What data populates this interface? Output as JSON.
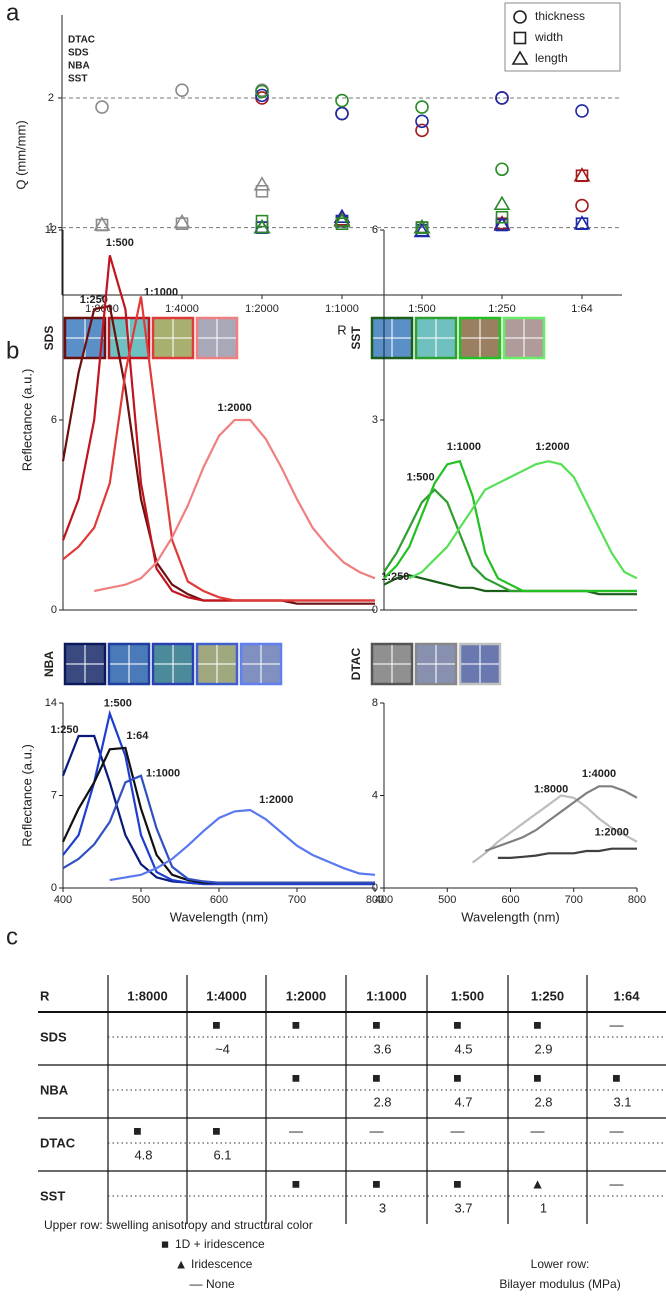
{
  "panel_labels": [
    "a",
    "b",
    "c"
  ],
  "chart_data": [
    {
      "type": "scatter",
      "ylabel": "Q (mm/mm)",
      "xlabel": "R",
      "categories": [
        "1:8000",
        "1:4000",
        "1:2000",
        "1:1000",
        "1:500",
        "1:250",
        "1:64"
      ],
      "markers": [
        "thickness",
        "width",
        "length"
      ],
      "ylim": [
        0.48,
        2.64
      ],
      "yticks": [
        1,
        2
      ],
      "grid": true,
      "series": [
        {
          "name": "DTAC",
          "color": "#8c8c8c",
          "values": [
            [
              1.93,
              1.02,
              1.02
            ],
            [
              2.06,
              1.03,
              1.04
            ],
            [
              2.06,
              1.28,
              1.33
            ],
            null,
            null,
            null,
            null
          ]
        },
        {
          "name": "SDS",
          "color": "#a31c1c",
          "values": [
            null,
            null,
            [
              2.0,
              1.0,
              1.0
            ],
            [
              1.88,
              1.05,
              1.06
            ],
            [
              1.75,
              1.0,
              1.0
            ],
            [
              2.0,
              1.03,
              1.03
            ],
            [
              1.17,
              1.4,
              1.4
            ]
          ]
        },
        {
          "name": "NBA",
          "color": "#1f2aa8",
          "values": [
            null,
            null,
            [
              2.02,
              1.0,
              1.0
            ],
            [
              1.88,
              1.05,
              1.08
            ],
            [
              1.82,
              0.98,
              0.97
            ],
            [
              2.0,
              1.02,
              1.02
            ],
            [
              1.9,
              1.03,
              1.03
            ]
          ]
        },
        {
          "name": "SST",
          "color": "#2a8a2a",
          "values": [
            null,
            null,
            [
              2.05,
              1.05,
              1.0
            ],
            [
              1.98,
              1.03,
              1.05
            ],
            [
              1.93,
              1.0,
              1.0
            ],
            [
              1.45,
              1.08,
              1.18
            ],
            null
          ]
        }
      ]
    },
    {
      "type": "line",
      "label": "SDS",
      "label_color": "#c0141e",
      "ylabel": "Reflectance (a.u.)",
      "swatches": [
        {
          "border": "#6b0f0f",
          "fill": "#5a8fc8"
        },
        {
          "border": "#c0141e",
          "fill": "#6fc0c0"
        },
        {
          "border": "#e03a3a",
          "fill": "#a8b070"
        },
        {
          "border": "#f08080",
          "fill": "#a8a8b8"
        }
      ],
      "x": [
        400,
        420,
        440,
        460,
        480,
        500,
        520,
        540,
        560,
        580,
        600,
        620,
        640,
        660,
        680,
        700,
        720,
        740,
        760,
        780,
        800
      ],
      "xlim": [
        400,
        800
      ],
      "ylim": [
        0,
        12
      ],
      "yticks": [
        0,
        6,
        12
      ],
      "series": [
        {
          "name": "1:250",
          "color": "#6b0f0f",
          "values": [
            4.7,
            7.5,
            9.5,
            9.6,
            7,
            3.5,
            1.5,
            0.8,
            0.5,
            0.3,
            0.3,
            0.3,
            0.3,
            0.3,
            0.3,
            0.2,
            0.2,
            0.2,
            0.2,
            0.2,
            0.2
          ]
        },
        {
          "name": "1:500",
          "color": "#c0141e",
          "values": [
            2.2,
            3.5,
            6,
            11.2,
            9.5,
            4,
            1.3,
            0.6,
            0.4,
            0.3,
            0.3,
            0.3,
            0.3,
            0.3,
            0.3,
            0.3,
            0.3,
            0.3,
            0.3,
            0.3,
            0.3
          ]
        },
        {
          "name": "1:1000",
          "color": "#e03a3a",
          "values": [
            1.6,
            2,
            2.6,
            4,
            7.5,
            9.9,
            6,
            2.2,
            0.9,
            0.6,
            0.4,
            0.3,
            0.3,
            0.3,
            0.3,
            0.3,
            0.3,
            0.3,
            0.3,
            0.3,
            0.3
          ]
        },
        {
          "name": "1:2000",
          "color": "#f08080",
          "values": [
            null,
            null,
            0.6,
            0.7,
            0.8,
            1,
            1.5,
            2.3,
            3.3,
            4.5,
            5.5,
            6,
            6,
            5.4,
            4.5,
            3.5,
            2.6,
            2,
            1.5,
            1.2,
            1
          ]
        }
      ]
    },
    {
      "type": "line",
      "label": "SST",
      "label_color": "#22a022",
      "swatches": [
        {
          "border": "#1a5e1a",
          "fill": "#5a8fc8"
        },
        {
          "border": "#2ea02e",
          "fill": "#70c0c0"
        },
        {
          "border": "#22c022",
          "fill": "#9a8060"
        },
        {
          "border": "#66ee66",
          "fill": "#b09a9a"
        }
      ],
      "x": [
        400,
        420,
        440,
        460,
        480,
        500,
        520,
        540,
        560,
        580,
        600,
        620,
        640,
        660,
        680,
        700,
        720,
        740,
        760,
        780,
        800
      ],
      "xlim": [
        400,
        800
      ],
      "ylim": [
        0,
        6
      ],
      "yticks": [
        0,
        3,
        6
      ],
      "series": [
        {
          "name": "1:250",
          "color": "#1a5e1a",
          "values": [
            0.4,
            0.5,
            0.55,
            0.5,
            0.45,
            0.4,
            0.35,
            0.35,
            0.3,
            0.3,
            0.3,
            0.3,
            0.3,
            0.3,
            0.3,
            0.3,
            0.3,
            0.25,
            0.25,
            0.25,
            0.25
          ]
        },
        {
          "name": "1:500",
          "color": "#2e9e2e",
          "values": [
            0.6,
            0.9,
            1.3,
            1.7,
            1.9,
            1.7,
            1.2,
            0.7,
            0.5,
            0.4,
            0.3,
            0.3,
            0.3,
            0.3,
            0.3,
            0.3,
            0.3,
            0.3,
            0.3,
            0.3,
            0.3
          ]
        },
        {
          "name": "1:1000",
          "color": "#22c022",
          "values": [
            0.5,
            0.7,
            1,
            1.5,
            2,
            2.3,
            2.35,
            1.8,
            0.9,
            0.5,
            0.4,
            0.3,
            0.3,
            0.3,
            0.3,
            0.3,
            0.3,
            0.3,
            0.3,
            0.3,
            0.3
          ]
        },
        {
          "name": "1:2000",
          "color": "#55e055",
          "values": [
            null,
            null,
            0.5,
            0.6,
            0.8,
            1,
            1.3,
            1.6,
            1.9,
            2,
            2.1,
            2.2,
            2.3,
            2.35,
            2.3,
            2.1,
            1.7,
            1.3,
            0.9,
            0.6,
            0.5
          ]
        }
      ]
    },
    {
      "type": "line",
      "label": "NBA",
      "label_color": "#1f2ad0",
      "ylabel": "Reflectance (a.u.)",
      "xlabel": "Wavelength (nm)",
      "swatches": [
        {
          "border": "#0a1a5a",
          "fill": "#3a4a80"
        },
        {
          "border": "#1e3ea0",
          "fill": "#4a7ab8"
        },
        {
          "border": "#2a40b0",
          "fill": "#4a8a9a"
        },
        {
          "border": "#4060d0",
          "fill": "#a0a880"
        },
        {
          "border": "#6080f0",
          "fill": "#8090c0"
        }
      ],
      "x": [
        400,
        420,
        440,
        460,
        480,
        500,
        520,
        540,
        560,
        580,
        600,
        620,
        640,
        660,
        680,
        700,
        720,
        740,
        760,
        780,
        800
      ],
      "xlim": [
        400,
        800
      ],
      "xticks": [
        400,
        500,
        600,
        700,
        800
      ],
      "ylim": [
        0,
        14
      ],
      "yticks": [
        0,
        7,
        14
      ],
      "series": [
        {
          "name": "1:250",
          "color": "#0a1a7a",
          "values": [
            8.5,
            11.5,
            11.5,
            8,
            4,
            1.8,
            0.8,
            0.5,
            0.4,
            0.3,
            0.3,
            0.3,
            0.3,
            0.3,
            0.3,
            0.3,
            0.3,
            0.3,
            0.3,
            0.3,
            0.3
          ]
        },
        {
          "name": "1:500",
          "color": "#1e3ed0",
          "values": [
            2.5,
            4,
            8,
            13.2,
            10,
            4,
            1.2,
            0.6,
            0.4,
            0.3,
            0.3,
            0.3,
            0.3,
            0.3,
            0.3,
            0.3,
            0.3,
            0.3,
            0.3,
            0.3,
            0.3
          ]
        },
        {
          "name": "1:64",
          "color": "#111111",
          "values": [
            3.5,
            6,
            8,
            10.5,
            10.6,
            6,
            2.5,
            1,
            0.6,
            0.4,
            0.4,
            0.4,
            0.4,
            0.4,
            0.4,
            0.4,
            0.4,
            0.4,
            0.4,
            0.4,
            0.4
          ]
        },
        {
          "name": "1:1000",
          "color": "#3050c0",
          "values": [
            1.5,
            2.2,
            3.3,
            5,
            8,
            8.5,
            4.5,
            1.6,
            0.7,
            0.5,
            0.4,
            0.4,
            0.4,
            0.4,
            0.4,
            0.4,
            0.4,
            0.4,
            0.4,
            0.4,
            0.4
          ]
        },
        {
          "name": "1:2000",
          "color": "#5a78f0",
          "values": [
            null,
            null,
            null,
            0.6,
            0.8,
            1,
            1.5,
            2.2,
            3.2,
            4.3,
            5.3,
            5.8,
            5.9,
            5.2,
            4.2,
            3.2,
            2.5,
            2,
            1.5,
            1.1,
            1
          ]
        }
      ]
    },
    {
      "type": "line",
      "label": "DTAC",
      "label_color": "#9a9a9a",
      "xlabel": "Wavelength (nm)",
      "swatches": [
        {
          "border": "#555555",
          "fill": "#909090"
        },
        {
          "border": "#888888",
          "fill": "#8890b0"
        },
        {
          "border": "#c0c0c0",
          "fill": "#6a78b0"
        }
      ],
      "x": [
        400,
        420,
        440,
        460,
        480,
        500,
        520,
        540,
        560,
        580,
        600,
        620,
        640,
        660,
        680,
        700,
        720,
        740,
        760,
        780,
        800
      ],
      "xlim": [
        400,
        800
      ],
      "xticks": [
        400,
        500,
        600,
        700,
        800
      ],
      "ylim": [
        0,
        8
      ],
      "yticks": [
        0,
        4,
        8
      ],
      "series": [
        {
          "name": "1:8000",
          "color": "#bdbdbd",
          "values": [
            null,
            null,
            null,
            null,
            null,
            null,
            null,
            1.1,
            1.5,
            2,
            2.4,
            2.8,
            3.2,
            3.6,
            4,
            3.9,
            3.5,
            3,
            2.6,
            2.3,
            2
          ]
        },
        {
          "name": "1:4000",
          "color": "#808080",
          "values": [
            null,
            null,
            null,
            null,
            null,
            null,
            null,
            null,
            1.6,
            1.8,
            2,
            2.2,
            2.5,
            2.9,
            3.3,
            3.7,
            4.1,
            4.4,
            4.4,
            4.2,
            3.9
          ]
        },
        {
          "name": "1:2000",
          "color": "#404040",
          "values": [
            null,
            null,
            null,
            null,
            null,
            null,
            null,
            null,
            null,
            1.3,
            1.3,
            1.35,
            1.4,
            1.5,
            1.5,
            1.5,
            1.6,
            1.6,
            1.7,
            1.7,
            1.7
          ]
        }
      ]
    }
  ],
  "table": {
    "header": [
      "R",
      "1:8000",
      "1:4000",
      "1:2000",
      "1:1000",
      "1:500",
      "1:250",
      "1:64"
    ],
    "rows": [
      {
        "name": "SDS",
        "color": "#c0141e",
        "upper": [
          null,
          "■",
          "■",
          "■",
          "■",
          "■",
          "—"
        ],
        "lower": [
          null,
          "~4",
          null,
          "3.6",
          "4.5",
          "2.9",
          null
        ]
      },
      {
        "name": "NBA",
        "color": "#1f2ad0",
        "upper": [
          null,
          null,
          "■",
          "■",
          "■",
          "■",
          "■"
        ],
        "lower": [
          null,
          null,
          null,
          "2.8",
          "4.7",
          "2.8",
          "3.1"
        ]
      },
      {
        "name": "DTAC",
        "color": "#9a9a9a",
        "upper": [
          "■",
          "■",
          "—",
          "—",
          "—",
          "—",
          "—"
        ],
        "lower": [
          "4.8",
          "6.1",
          null,
          null,
          null,
          null,
          null
        ]
      },
      {
        "name": "SST",
        "color": "#22a022",
        "upper": [
          null,
          null,
          "■",
          "■",
          "■",
          "▲",
          "—"
        ],
        "lower": [
          null,
          null,
          null,
          "3",
          "3.7",
          "1",
          null
        ]
      }
    ],
    "note": {
      "upper_title": "Upper row: swelling  anisotropy and structural color",
      "items": [
        {
          "symbol": "■",
          "label": "1D + iridescence"
        },
        {
          "symbol": "▲",
          "label": "Iridescence"
        },
        {
          "symbol": "—",
          "label": "None"
        }
      ],
      "lower_title": "Lower row:",
      "lower_label": "Bilayer modulus (MPa)"
    }
  }
}
